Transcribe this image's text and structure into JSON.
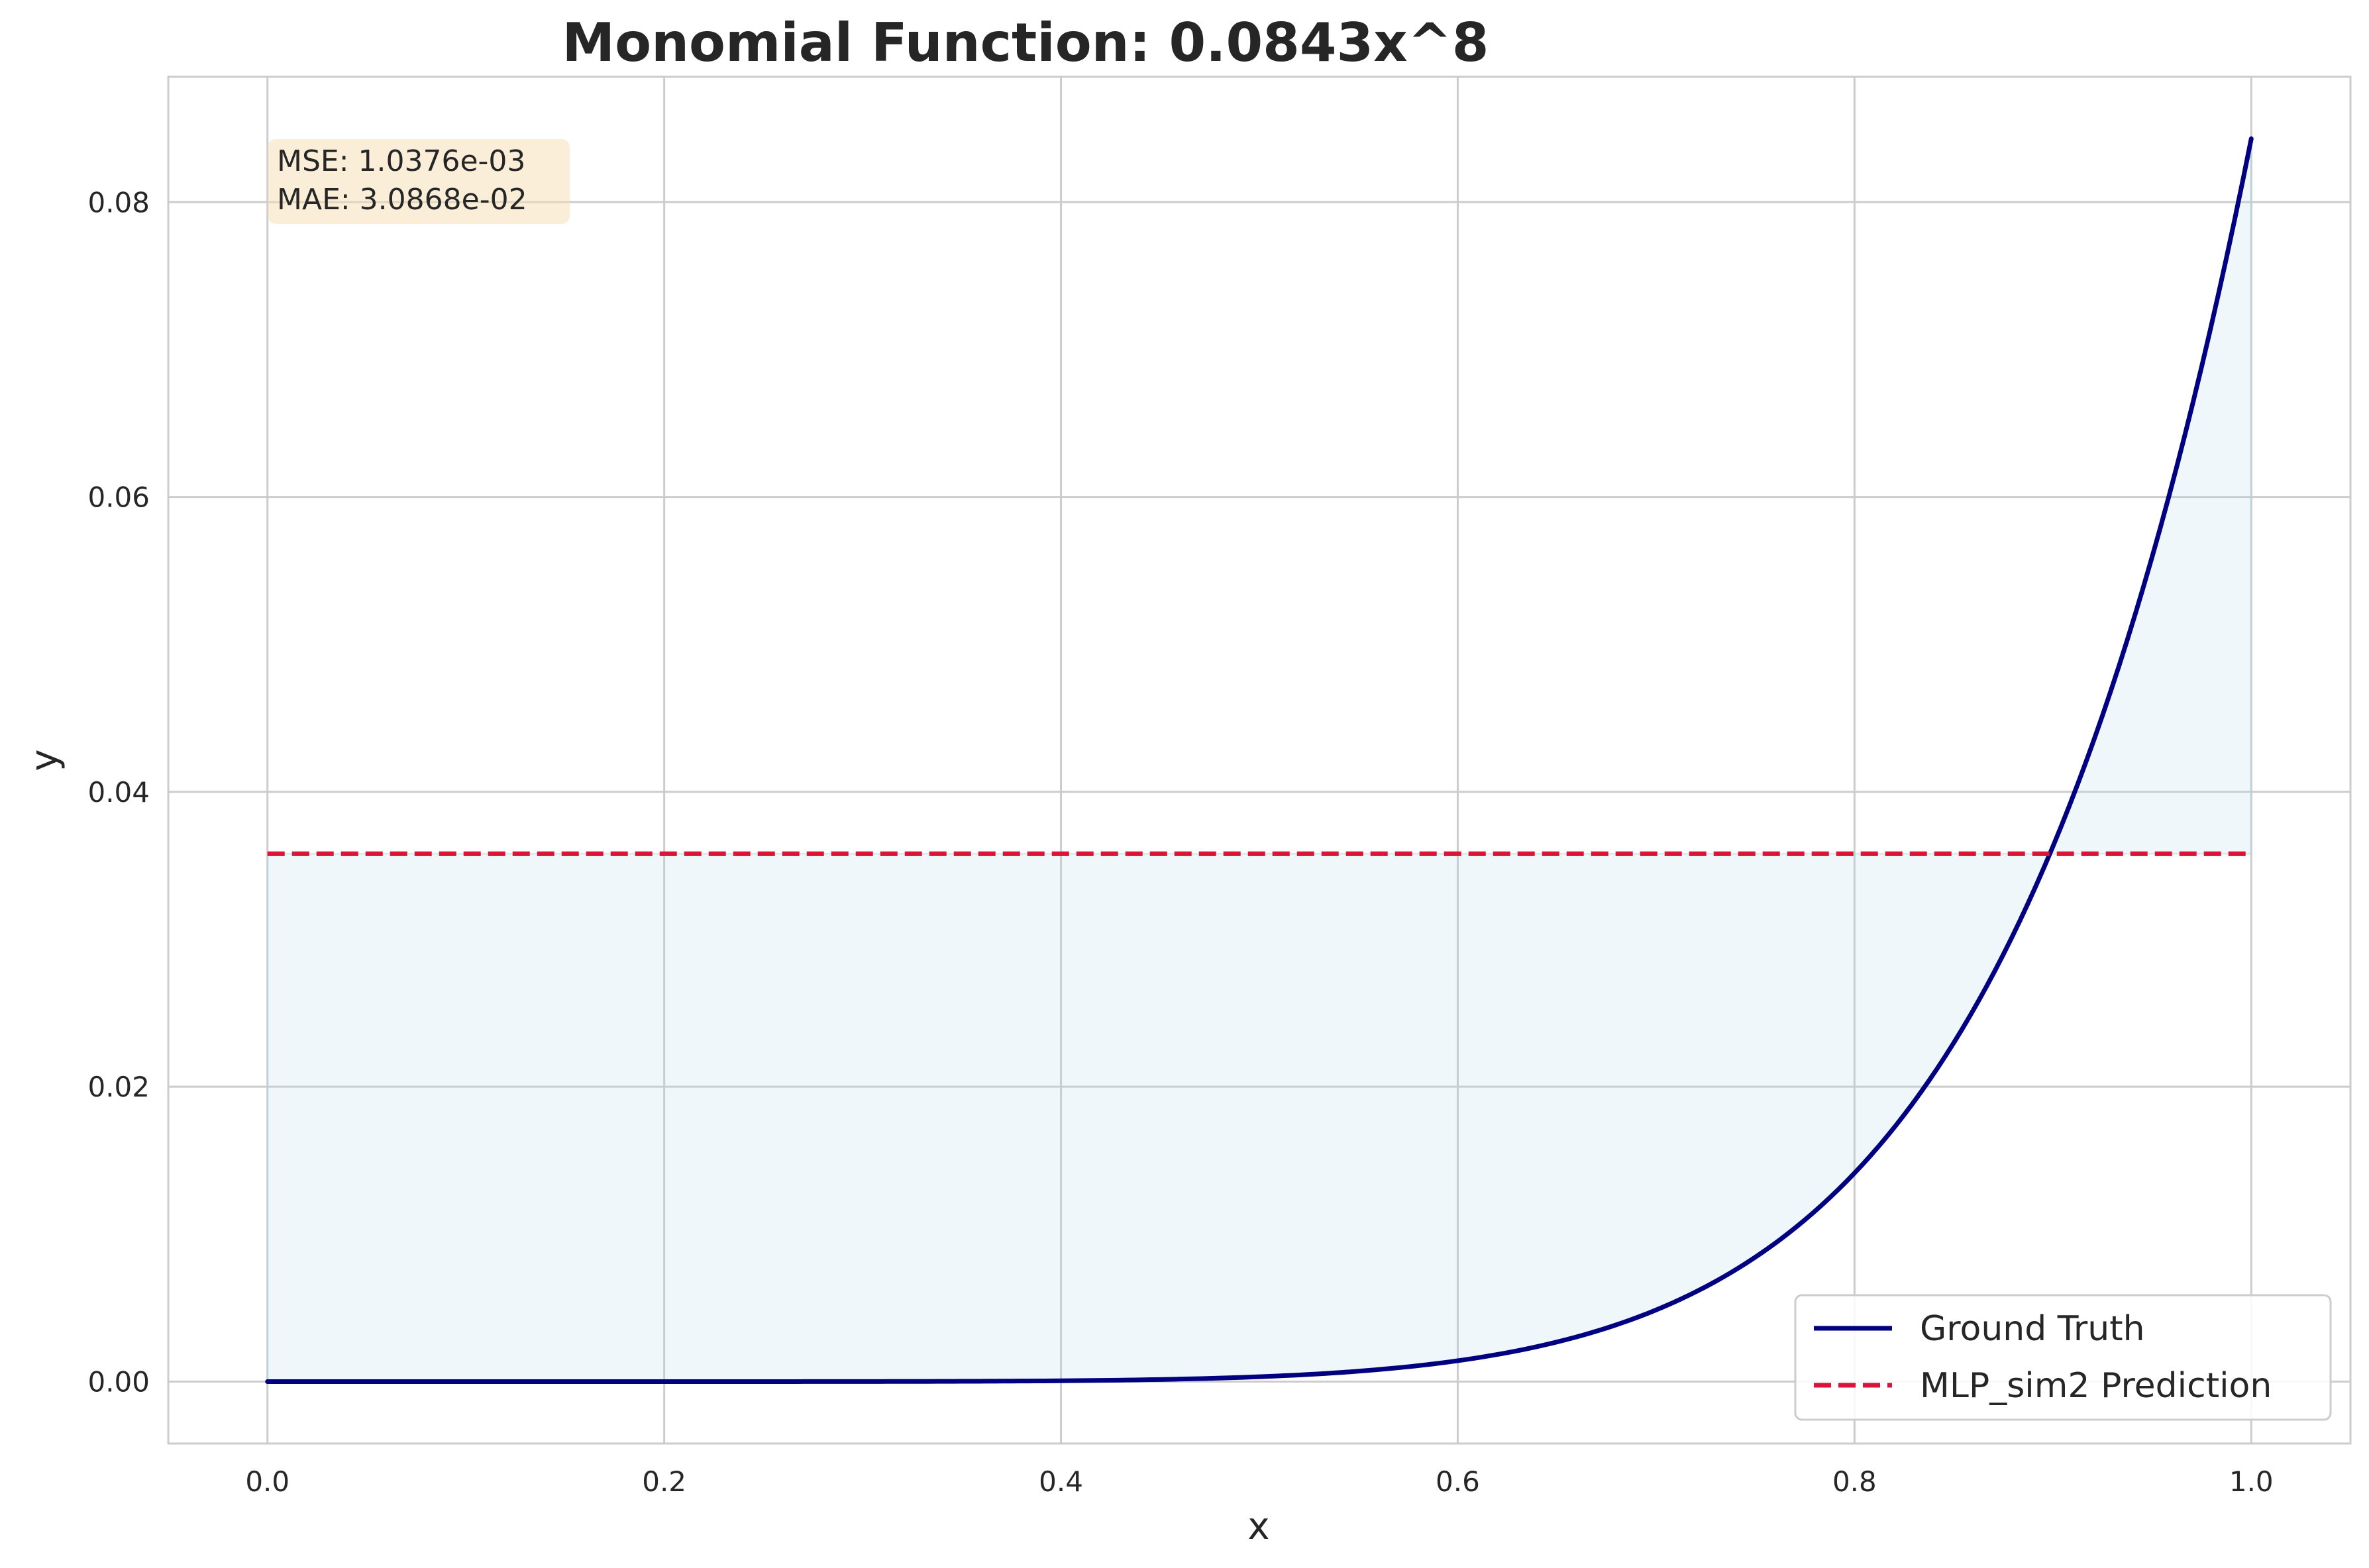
{
  "chart_data": {
    "type": "line",
    "title": "Monomial Function: 0.0843x^8",
    "xlabel": "x",
    "ylabel": "y",
    "xlim": [
      -0.05,
      1.05
    ],
    "ylim": [
      -0.0042,
      0.0885
    ],
    "x_ticks": [
      0.0,
      0.2,
      0.4,
      0.6,
      0.8,
      1.0
    ],
    "x_tick_labels": [
      "0.0",
      "0.2",
      "0.4",
      "0.6",
      "0.8",
      "1.0"
    ],
    "y_ticks": [
      0.0,
      0.02,
      0.04,
      0.06,
      0.08
    ],
    "y_tick_labels": [
      "0.00",
      "0.02",
      "0.04",
      "0.06",
      "0.08"
    ],
    "grid": true,
    "legend_position": "bottom-right",
    "series": [
      {
        "name": "Ground Truth",
        "style": "solid",
        "color": "#000080",
        "x": [
          0.0,
          0.1,
          0.2,
          0.3,
          0.4,
          0.5,
          0.55,
          0.6,
          0.65,
          0.7,
          0.75,
          0.8,
          0.85,
          0.9,
          0.95,
          1.0
        ],
        "y": [
          0.0,
          0.0,
          0.0,
          0.0,
          0.0001,
          0.0003,
          0.0007,
          0.0014,
          0.0027,
          0.0049,
          0.0084,
          0.0141,
          0.023,
          0.0363,
          0.0559,
          0.0843
        ]
      },
      {
        "name": "MLP_sim2 Prediction",
        "style": "dashed",
        "color": "#dc143c",
        "x": [
          0.0,
          1.0
        ],
        "y": [
          0.0358,
          0.0358
        ]
      }
    ],
    "fill_between": {
      "color": "#add8e6",
      "opacity": 0.2
    },
    "annotation": {
      "lines": [
        "MSE: 1.0376e-03",
        "MAE: 3.0868e-02"
      ],
      "background": "#f5deb3"
    }
  }
}
